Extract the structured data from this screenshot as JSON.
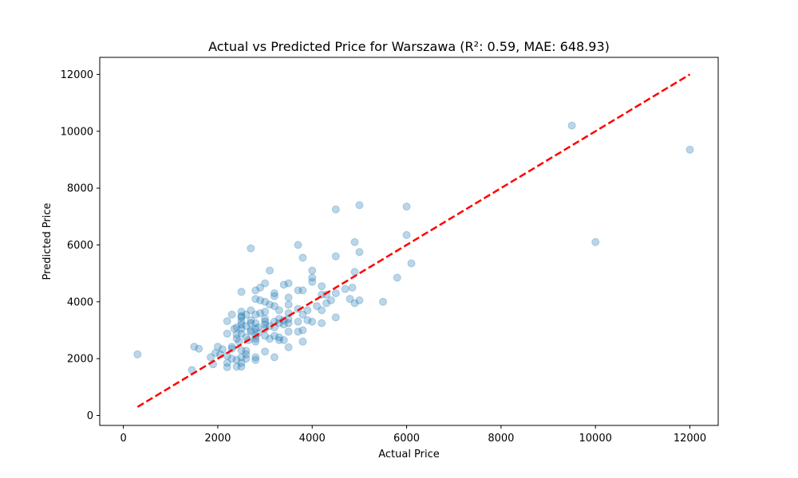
{
  "chart_data": {
    "type": "scatter",
    "title": "Actual vs Predicted Price for Warszawa (R²: 0.59, MAE: 648.93)",
    "xlabel": "Actual Price",
    "ylabel": "Predicted Price",
    "xlim": [
      -500,
      12600
    ],
    "ylim": [
      -350,
      12600
    ],
    "xticks": [
      0,
      2000,
      4000,
      6000,
      8000,
      10000,
      12000
    ],
    "yticks": [
      0,
      2000,
      4000,
      6000,
      8000,
      10000,
      12000
    ],
    "grid": false,
    "point_color": "#1f77b4",
    "reference_line": {
      "x": [
        300,
        12000
      ],
      "y": [
        300,
        12000
      ],
      "color": "#ff0000",
      "style": "dashed"
    },
    "points": [
      [
        300,
        2150
      ],
      [
        1450,
        1600
      ],
      [
        1500,
        2420
      ],
      [
        1600,
        2350
      ],
      [
        1850,
        2050
      ],
      [
        1900,
        1800
      ],
      [
        1950,
        2200
      ],
      [
        2000,
        2420
      ],
      [
        2050,
        2150
      ],
      [
        2100,
        2330
      ],
      [
        2200,
        1700
      ],
      [
        2200,
        1850
      ],
      [
        2200,
        2100
      ],
      [
        2200,
        2880
      ],
      [
        2200,
        3320
      ],
      [
        2300,
        2000
      ],
      [
        2300,
        2350
      ],
      [
        2300,
        2420
      ],
      [
        2300,
        3550
      ],
      [
        2350,
        3050
      ],
      [
        2400,
        1720
      ],
      [
        2400,
        1950
      ],
      [
        2400,
        2850
      ],
      [
        2400,
        2700
      ],
      [
        2400,
        3100
      ],
      [
        2450,
        2600
      ],
      [
        2500,
        1720
      ],
      [
        2500,
        1850
      ],
      [
        2500,
        2050
      ],
      [
        2500,
        2300
      ],
      [
        2500,
        2880
      ],
      [
        2500,
        3050
      ],
      [
        2500,
        3200
      ],
      [
        2500,
        3320
      ],
      [
        2500,
        3450
      ],
      [
        2500,
        3500
      ],
      [
        2500,
        3650
      ],
      [
        2500,
        4350
      ],
      [
        2600,
        2000
      ],
      [
        2600,
        2150
      ],
      [
        2600,
        2280
      ],
      [
        2600,
        2750
      ],
      [
        2600,
        3150
      ],
      [
        2600,
        3550
      ],
      [
        2650,
        2650
      ],
      [
        2700,
        2950
      ],
      [
        2700,
        3000
      ],
      [
        2700,
        3250
      ],
      [
        2700,
        3350
      ],
      [
        2700,
        3700
      ],
      [
        2700,
        5880
      ],
      [
        2800,
        1950
      ],
      [
        2800,
        2050
      ],
      [
        2800,
        2600
      ],
      [
        2800,
        2700
      ],
      [
        2800,
        2800
      ],
      [
        2800,
        3050
      ],
      [
        2800,
        3250
      ],
      [
        2800,
        3550
      ],
      [
        2800,
        4100
      ],
      [
        2800,
        4400
      ],
      [
        2850,
        2900
      ],
      [
        2850,
        3100
      ],
      [
        2900,
        3600
      ],
      [
        2900,
        4050
      ],
      [
        2900,
        4500
      ],
      [
        3000,
        2250
      ],
      [
        3000,
        2800
      ],
      [
        3000,
        3050
      ],
      [
        3000,
        3200
      ],
      [
        3000,
        3300
      ],
      [
        3000,
        3400
      ],
      [
        3000,
        3650
      ],
      [
        3000,
        4000
      ],
      [
        3000,
        4650
      ],
      [
        3100,
        2700
      ],
      [
        3100,
        3150
      ],
      [
        3100,
        3900
      ],
      [
        3100,
        5100
      ],
      [
        3200,
        2050
      ],
      [
        3200,
        2800
      ],
      [
        3200,
        3100
      ],
      [
        3200,
        3300
      ],
      [
        3200,
        3850
      ],
      [
        3200,
        4200
      ],
      [
        3200,
        4300
      ],
      [
        3300,
        2650
      ],
      [
        3300,
        2750
      ],
      [
        3300,
        3250
      ],
      [
        3300,
        3400
      ],
      [
        3300,
        3700
      ],
      [
        3400,
        2650
      ],
      [
        3400,
        3200
      ],
      [
        3400,
        3350
      ],
      [
        3400,
        4600
      ],
      [
        3500,
        2400
      ],
      [
        3500,
        2950
      ],
      [
        3500,
        3250
      ],
      [
        3500,
        3400
      ],
      [
        3500,
        3600
      ],
      [
        3500,
        3900
      ],
      [
        3500,
        4150
      ],
      [
        3500,
        4650
      ],
      [
        3700,
        2950
      ],
      [
        3700,
        3300
      ],
      [
        3700,
        3750
      ],
      [
        3700,
        4400
      ],
      [
        3700,
        6000
      ],
      [
        3800,
        2600
      ],
      [
        3800,
        3000
      ],
      [
        3800,
        3550
      ],
      [
        3800,
        4400
      ],
      [
        3800,
        5550
      ],
      [
        3900,
        3350
      ],
      [
        3900,
        3700
      ],
      [
        4000,
        3300
      ],
      [
        4000,
        4700
      ],
      [
        4000,
        4850
      ],
      [
        4000,
        5100
      ],
      [
        4100,
        3850
      ],
      [
        4200,
        3250
      ],
      [
        4200,
        3700
      ],
      [
        4200,
        4250
      ],
      [
        4200,
        4550
      ],
      [
        4300,
        3950
      ],
      [
        4300,
        4250
      ],
      [
        4400,
        4050
      ],
      [
        4500,
        3450
      ],
      [
        4500,
        4300
      ],
      [
        4500,
        5600
      ],
      [
        4500,
        7250
      ],
      [
        4700,
        4450
      ],
      [
        4800,
        4100
      ],
      [
        4850,
        4500
      ],
      [
        4900,
        3950
      ],
      [
        4900,
        5050
      ],
      [
        4900,
        6100
      ],
      [
        5000,
        4050
      ],
      [
        5000,
        5750
      ],
      [
        5000,
        7400
      ],
      [
        5500,
        4000
      ],
      [
        5800,
        4850
      ],
      [
        6000,
        6350
      ],
      [
        6000,
        7350
      ],
      [
        6100,
        5350
      ],
      [
        9500,
        10200
      ],
      [
        10000,
        6100
      ],
      [
        12000,
        9350
      ]
    ]
  }
}
